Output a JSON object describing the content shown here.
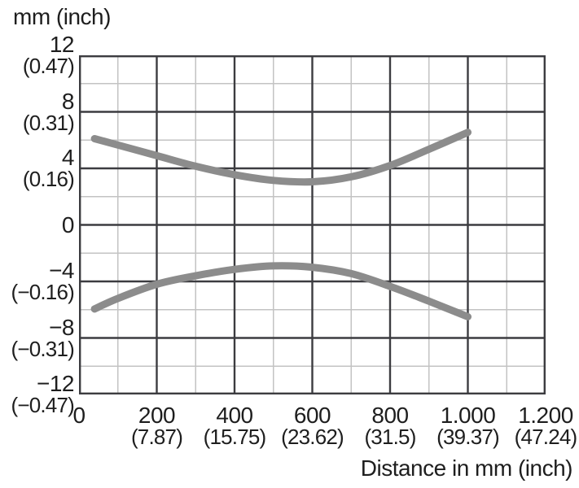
{
  "figure": {
    "y_axis_title": "mm (inch)",
    "x_axis_title": "Distance in mm (inch)"
  },
  "chart_data": {
    "type": "line",
    "title": "",
    "xlabel": "Distance in mm (inch)",
    "ylabel": "mm (inch)",
    "xlim": [
      0,
      1200
    ],
    "ylim": [
      -12,
      12
    ],
    "grid": {
      "enabled": true,
      "x_minor_step": 100,
      "x_major_step": 200,
      "y_minor_step": 2,
      "y_major_step": 4
    },
    "legend": "none",
    "x_ticks": [
      {
        "value": 0,
        "mm": "0",
        "inch": ""
      },
      {
        "value": 200,
        "mm": "200",
        "inch": "(7.87)"
      },
      {
        "value": 400,
        "mm": "400",
        "inch": "(15.75)"
      },
      {
        "value": 600,
        "mm": "600",
        "inch": "(23.62)"
      },
      {
        "value": 800,
        "mm": "800",
        "inch": "(31.5)"
      },
      {
        "value": 1000,
        "mm": "1.000",
        "inch": "(39.37)"
      },
      {
        "value": 1200,
        "mm": "1.200",
        "inch": "(47.24)"
      }
    ],
    "y_ticks": [
      {
        "value": 12,
        "mm": "12",
        "inch": "(0.47)"
      },
      {
        "value": 8,
        "mm": "8",
        "inch": "(0.31)"
      },
      {
        "value": 4,
        "mm": "4",
        "inch": "(0.16)"
      },
      {
        "value": 0,
        "mm": "0",
        "inch": ""
      },
      {
        "value": -4,
        "mm": "−4",
        "inch": "(−0.16)"
      },
      {
        "value": -8,
        "mm": "−8",
        "inch": "(−0.31)"
      },
      {
        "value": -12,
        "mm": "−12",
        "inch": "(−0.47)"
      }
    ],
    "series": [
      {
        "name": "upper-deviation-curve",
        "x": [
          40,
          100,
          200,
          300,
          400,
          500,
          600,
          700,
          800,
          900,
          1000
        ],
        "y": [
          6.1,
          5.65,
          4.9,
          4.15,
          3.55,
          3.15,
          3.05,
          3.4,
          4.2,
          5.35,
          6.55
        ]
      },
      {
        "name": "lower-deviation-curve",
        "x": [
          40,
          100,
          200,
          300,
          400,
          500,
          600,
          700,
          800,
          900,
          1000
        ],
        "y": [
          -5.95,
          -5.2,
          -4.2,
          -3.6,
          -3.15,
          -2.9,
          -3.0,
          -3.45,
          -4.35,
          -5.4,
          -6.5
        ]
      }
    ],
    "colors": {
      "curve": "#8c8c8c",
      "grid_minor": "#c3c3c3",
      "grid_major": "#3c3c40",
      "border": "#3c3c40",
      "text": "#1e1e1e",
      "background": "#ffffff"
    },
    "curve_stroke_width": 9
  }
}
